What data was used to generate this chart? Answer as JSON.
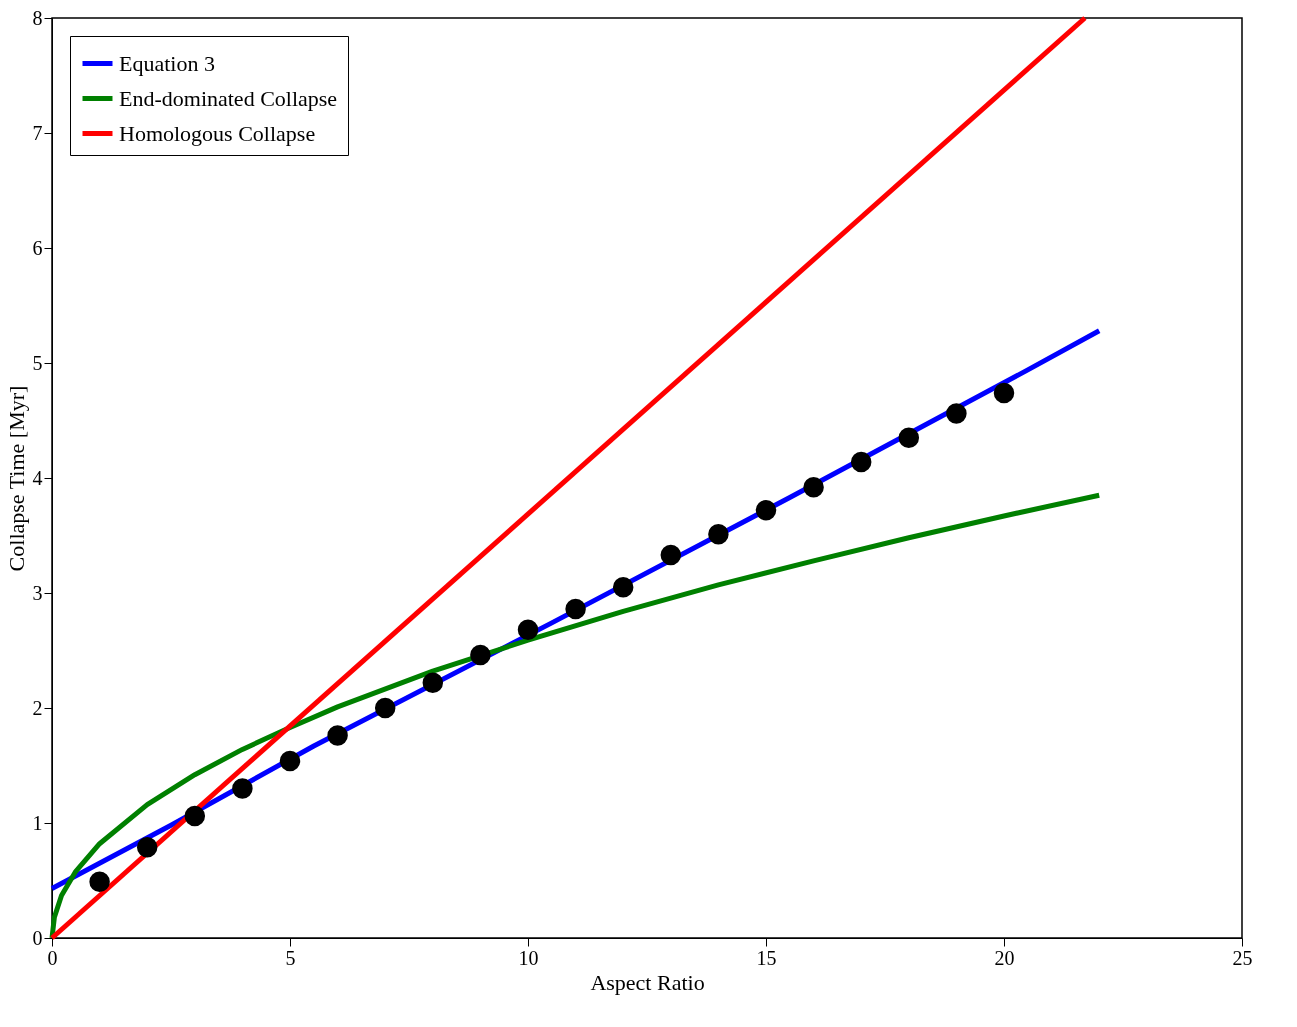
{
  "chart_data": {
    "type": "line",
    "xlabel": "Aspect Ratio",
    "ylabel": "Collapse Time [Myr]",
    "xlim": [
      0,
      25
    ],
    "ylim": [
      0,
      8
    ],
    "xticks": [
      0,
      5,
      10,
      15,
      20,
      25
    ],
    "yticks": [
      0,
      1,
      2,
      3,
      4,
      5,
      6,
      7,
      8
    ],
    "grid": false,
    "legend": "top left",
    "line_style": "solid",
    "marker": "none",
    "series": [
      {
        "name": "Equation 3",
        "color": "#0000ff",
        "x": [
          0,
          2.5,
          5.5,
          10.5,
          15.5,
          20.5,
          22
        ],
        "values": [
          0.43,
          0.98,
          1.67,
          2.74,
          3.83,
          4.94,
          5.28
        ]
      },
      {
        "name": "End-dominated Collapse",
        "color": "#008000",
        "x": [
          0,
          0.05,
          0.2,
          0.5,
          1,
          2,
          3,
          4,
          5,
          6,
          8,
          10,
          12,
          14,
          16,
          18,
          20,
          22
        ],
        "values": [
          0,
          0.18,
          0.37,
          0.58,
          0.82,
          1.16,
          1.42,
          1.64,
          1.83,
          2.01,
          2.32,
          2.59,
          2.84,
          3.07,
          3.28,
          3.48,
          3.67,
          3.85
        ]
      },
      {
        "name": "Homologous Collapse",
        "color": "#ff0000",
        "x": [
          0,
          21.7
        ],
        "values": [
          0,
          8
        ]
      },
      {
        "type": "scatter",
        "color": "#000000",
        "marker": "circle",
        "x": [
          1,
          2,
          3,
          4,
          5,
          6,
          7,
          8,
          9,
          10,
          11,
          12,
          13,
          14,
          15,
          16,
          17,
          18,
          19,
          20
        ],
        "values": [
          0.49,
          0.79,
          1.06,
          1.3,
          1.54,
          1.76,
          2.0,
          2.22,
          2.46,
          2.68,
          2.86,
          3.05,
          3.33,
          3.51,
          3.72,
          3.92,
          4.14,
          4.35,
          4.56,
          4.74
        ]
      }
    ]
  }
}
